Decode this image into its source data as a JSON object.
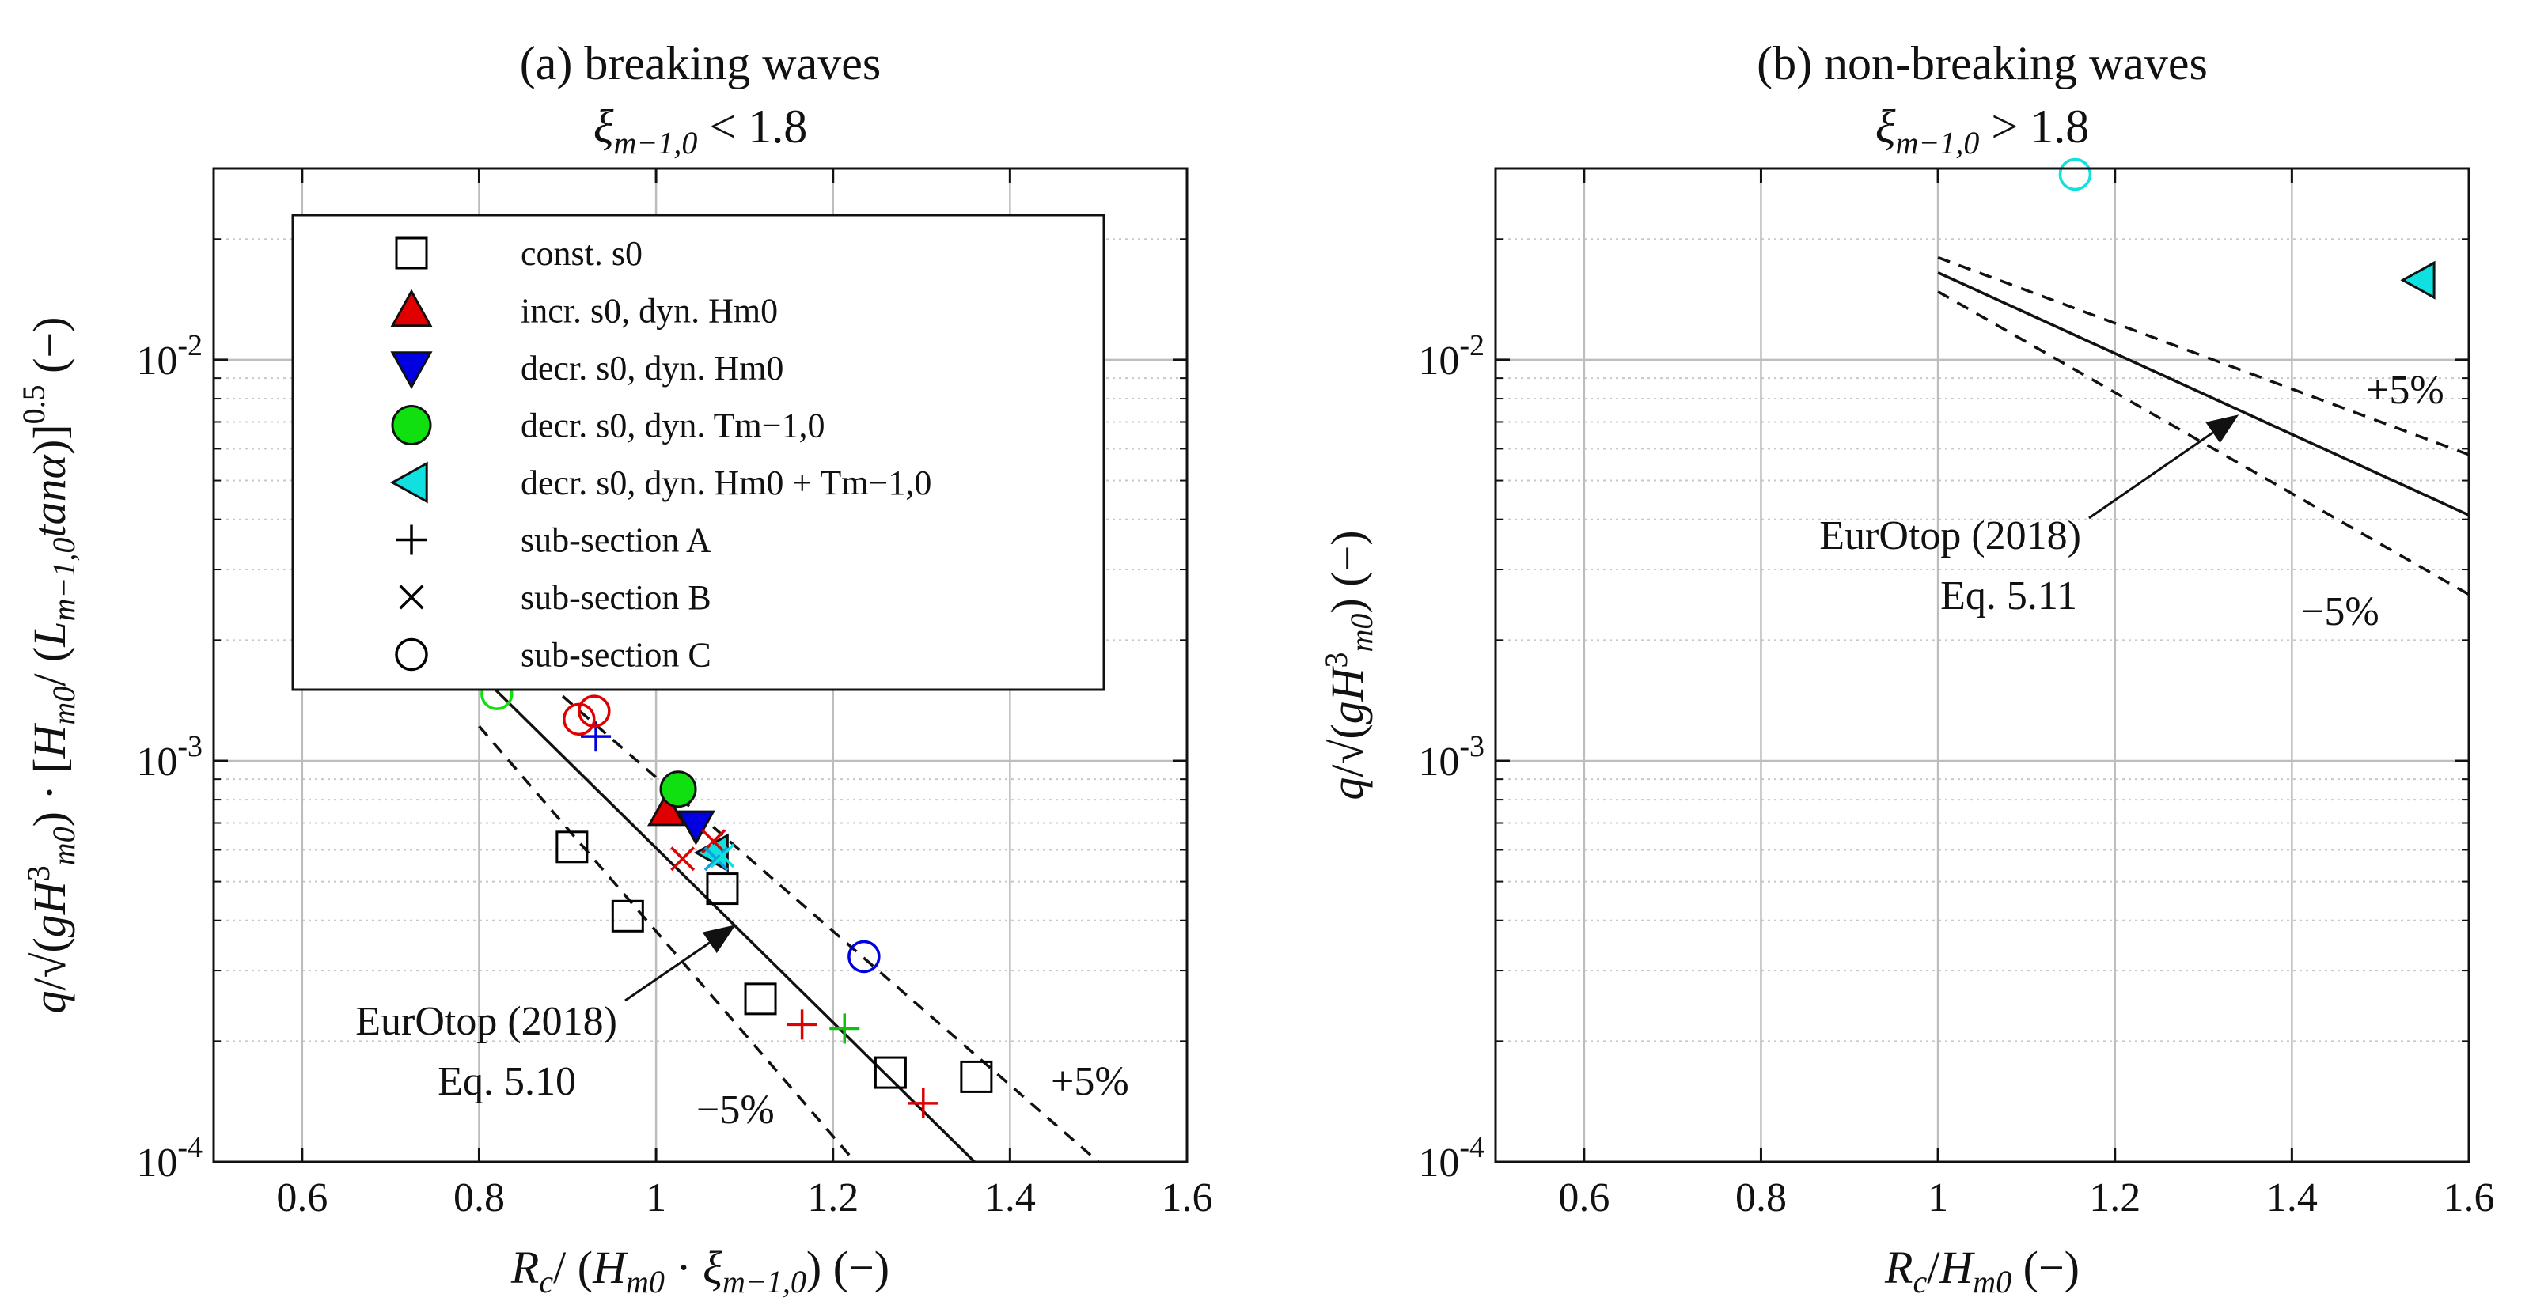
{
  "chart_data": [
    {
      "type": "scatter",
      "title": "(a) breaking waves",
      "subtitle": "ξm−1,0 < 1.8",
      "xlabel": "Rc/ (Hm0 · ξm−1,0) (−)",
      "ylabel": "q/√(gH³m0) · [Hm0/ (Lm−1,0 tanα)]^0.5 (−)",
      "xlim": [
        0.5,
        1.6
      ],
      "ylim": [
        0.0001,
        0.03
      ],
      "yscale": "log",
      "grid": true,
      "legend_position": "top-left",
      "x_ticks": [
        "0.6",
        "0.8",
        "1",
        "1.2",
        "1.4",
        "1.6"
      ],
      "y_ticks": [
        "10-4",
        "10-3",
        "10-2"
      ],
      "legend": [
        {
          "label": "const. s0",
          "marker": "square",
          "color": "#000000"
        },
        {
          "label": "incr. s0, dyn. Hm0",
          "marker": "triangle-up",
          "color": "#e00000"
        },
        {
          "label": "decr. s0, dyn. Hm0",
          "marker": "triangle-down",
          "color": "#0000e0"
        },
        {
          "label": "decr. s0, dyn. Tm−1,0",
          "marker": "circle-filled",
          "color": "#10e010"
        },
        {
          "label": "decr. s0, dyn. Hm0 + Tm−1,0",
          "marker": "triangle-left",
          "color": "#10e0e0"
        },
        {
          "label": "sub-section A",
          "marker": "plus",
          "color": "#000000"
        },
        {
          "label": "sub-section B",
          "marker": "cross",
          "color": "#000000"
        },
        {
          "label": "sub-section C",
          "marker": "circle",
          "color": "#000000"
        }
      ],
      "lines": [
        {
          "name": "EurOtop (2018) Eq. 5.10",
          "style": "solid",
          "x": [
            0.8,
            1.36
          ],
          "y": [
            0.00165,
            0.0001
          ]
        },
        {
          "name": "+5%",
          "style": "dashed",
          "x": [
            0.8,
            1.5
          ],
          "y": [
            0.0022,
            0.0001
          ]
        },
        {
          "name": "−5%",
          "style": "dashed",
          "x": [
            0.8,
            1.225
          ],
          "y": [
            0.00122,
            0.0001
          ]
        }
      ],
      "points": [
        {
          "x": 0.905,
          "y": 0.00061,
          "marker": "square",
          "color": "#000000"
        },
        {
          "x": 0.968,
          "y": 0.00041,
          "marker": "square",
          "color": "#000000"
        },
        {
          "x": 1.075,
          "y": 0.00048,
          "marker": "square",
          "color": "#000000"
        },
        {
          "x": 1.118,
          "y": 0.000255,
          "marker": "square",
          "color": "#000000"
        },
        {
          "x": 1.265,
          "y": 0.000167,
          "marker": "square",
          "color": "#000000"
        },
        {
          "x": 1.362,
          "y": 0.000163,
          "marker": "square",
          "color": "#000000"
        },
        {
          "x": 1.012,
          "y": 0.00075,
          "marker": "triangle-up",
          "color": "#e00000"
        },
        {
          "x": 1.045,
          "y": 0.00069,
          "marker": "triangle-down",
          "color": "#0000e0"
        },
        {
          "x": 1.025,
          "y": 0.00085,
          "marker": "circle-filled",
          "color": "#10e010"
        },
        {
          "x": 1.065,
          "y": 0.00059,
          "marker": "triangle-left",
          "color": "#10e0e0"
        },
        {
          "x": 0.932,
          "y": 0.00115,
          "marker": "plus",
          "color": "#0000e0"
        },
        {
          "x": 1.165,
          "y": 0.00022,
          "marker": "plus",
          "color": "#e00000"
        },
        {
          "x": 1.213,
          "y": 0.000215,
          "marker": "plus",
          "color": "#10c010"
        },
        {
          "x": 1.302,
          "y": 0.00014,
          "marker": "plus",
          "color": "#e00000"
        },
        {
          "x": 1.03,
          "y": 0.00057,
          "marker": "cross",
          "color": "#e00000"
        },
        {
          "x": 1.065,
          "y": 0.00063,
          "marker": "cross",
          "color": "#e00000"
        },
        {
          "x": 1.068,
          "y": 0.00057,
          "marker": "cross",
          "color": "#10a0e0"
        },
        {
          "x": 1.075,
          "y": 0.00058,
          "marker": "cross",
          "color": "#10e0e0"
        },
        {
          "x": 0.913,
          "y": 0.00127,
          "marker": "circle",
          "color": "#e00000"
        },
        {
          "x": 0.93,
          "y": 0.00133,
          "marker": "circle",
          "color": "#e00000"
        },
        {
          "x": 0.82,
          "y": 0.00147,
          "marker": "circle",
          "color": "#10e010"
        },
        {
          "x": 1.235,
          "y": 0.000325,
          "marker": "circle",
          "color": "#0000e0"
        }
      ],
      "annotations": [
        {
          "text": "EurOtop (2018)",
          "text2": "Eq. 5.10",
          "arrow_to": [
            1.09,
            0.00039
          ]
        },
        {
          "text": "+5%"
        },
        {
          "text": "−5%"
        }
      ]
    },
    {
      "type": "scatter",
      "title": "(b) non-breaking waves",
      "subtitle": "ξm−1,0 > 1.8",
      "xlabel": "Rc/Hm0 (−)",
      "ylabel": "q/√(gH³m0) (−)",
      "xlim": [
        0.5,
        1.6
      ],
      "ylim": [
        0.0001,
        0.03
      ],
      "yscale": "log",
      "grid": true,
      "x_ticks": [
        "0.6",
        "0.8",
        "1",
        "1.2",
        "1.4",
        "1.6"
      ],
      "y_ticks": [
        "10-4",
        "10-3",
        "10-2"
      ],
      "lines": [
        {
          "name": "EurOtop (2018) Eq. 5.11",
          "style": "solid",
          "x": [
            1.0,
            1.6
          ],
          "y": [
            0.0165,
            0.0041
          ]
        },
        {
          "name": "+5%",
          "style": "dashed",
          "x": [
            1.0,
            1.6
          ],
          "y": [
            0.018,
            0.0058
          ]
        },
        {
          "name": "−5%",
          "style": "dashed",
          "x": [
            1.0,
            1.6
          ],
          "y": [
            0.0148,
            0.0026
          ]
        }
      ],
      "points": [
        {
          "x": 1.155,
          "y": 0.029,
          "marker": "circle",
          "color": "#10e0e0"
        },
        {
          "x": 1.545,
          "y": 0.0158,
          "marker": "triangle-left",
          "color": "#10e0e0"
        }
      ],
      "annotations": [
        {
          "text": "EurOtop (2018)",
          "text2": "Eq. 5.11",
          "arrow_to": [
            1.34,
            0.0073
          ]
        },
        {
          "text": "+5%"
        },
        {
          "text": "−5%"
        }
      ]
    }
  ]
}
